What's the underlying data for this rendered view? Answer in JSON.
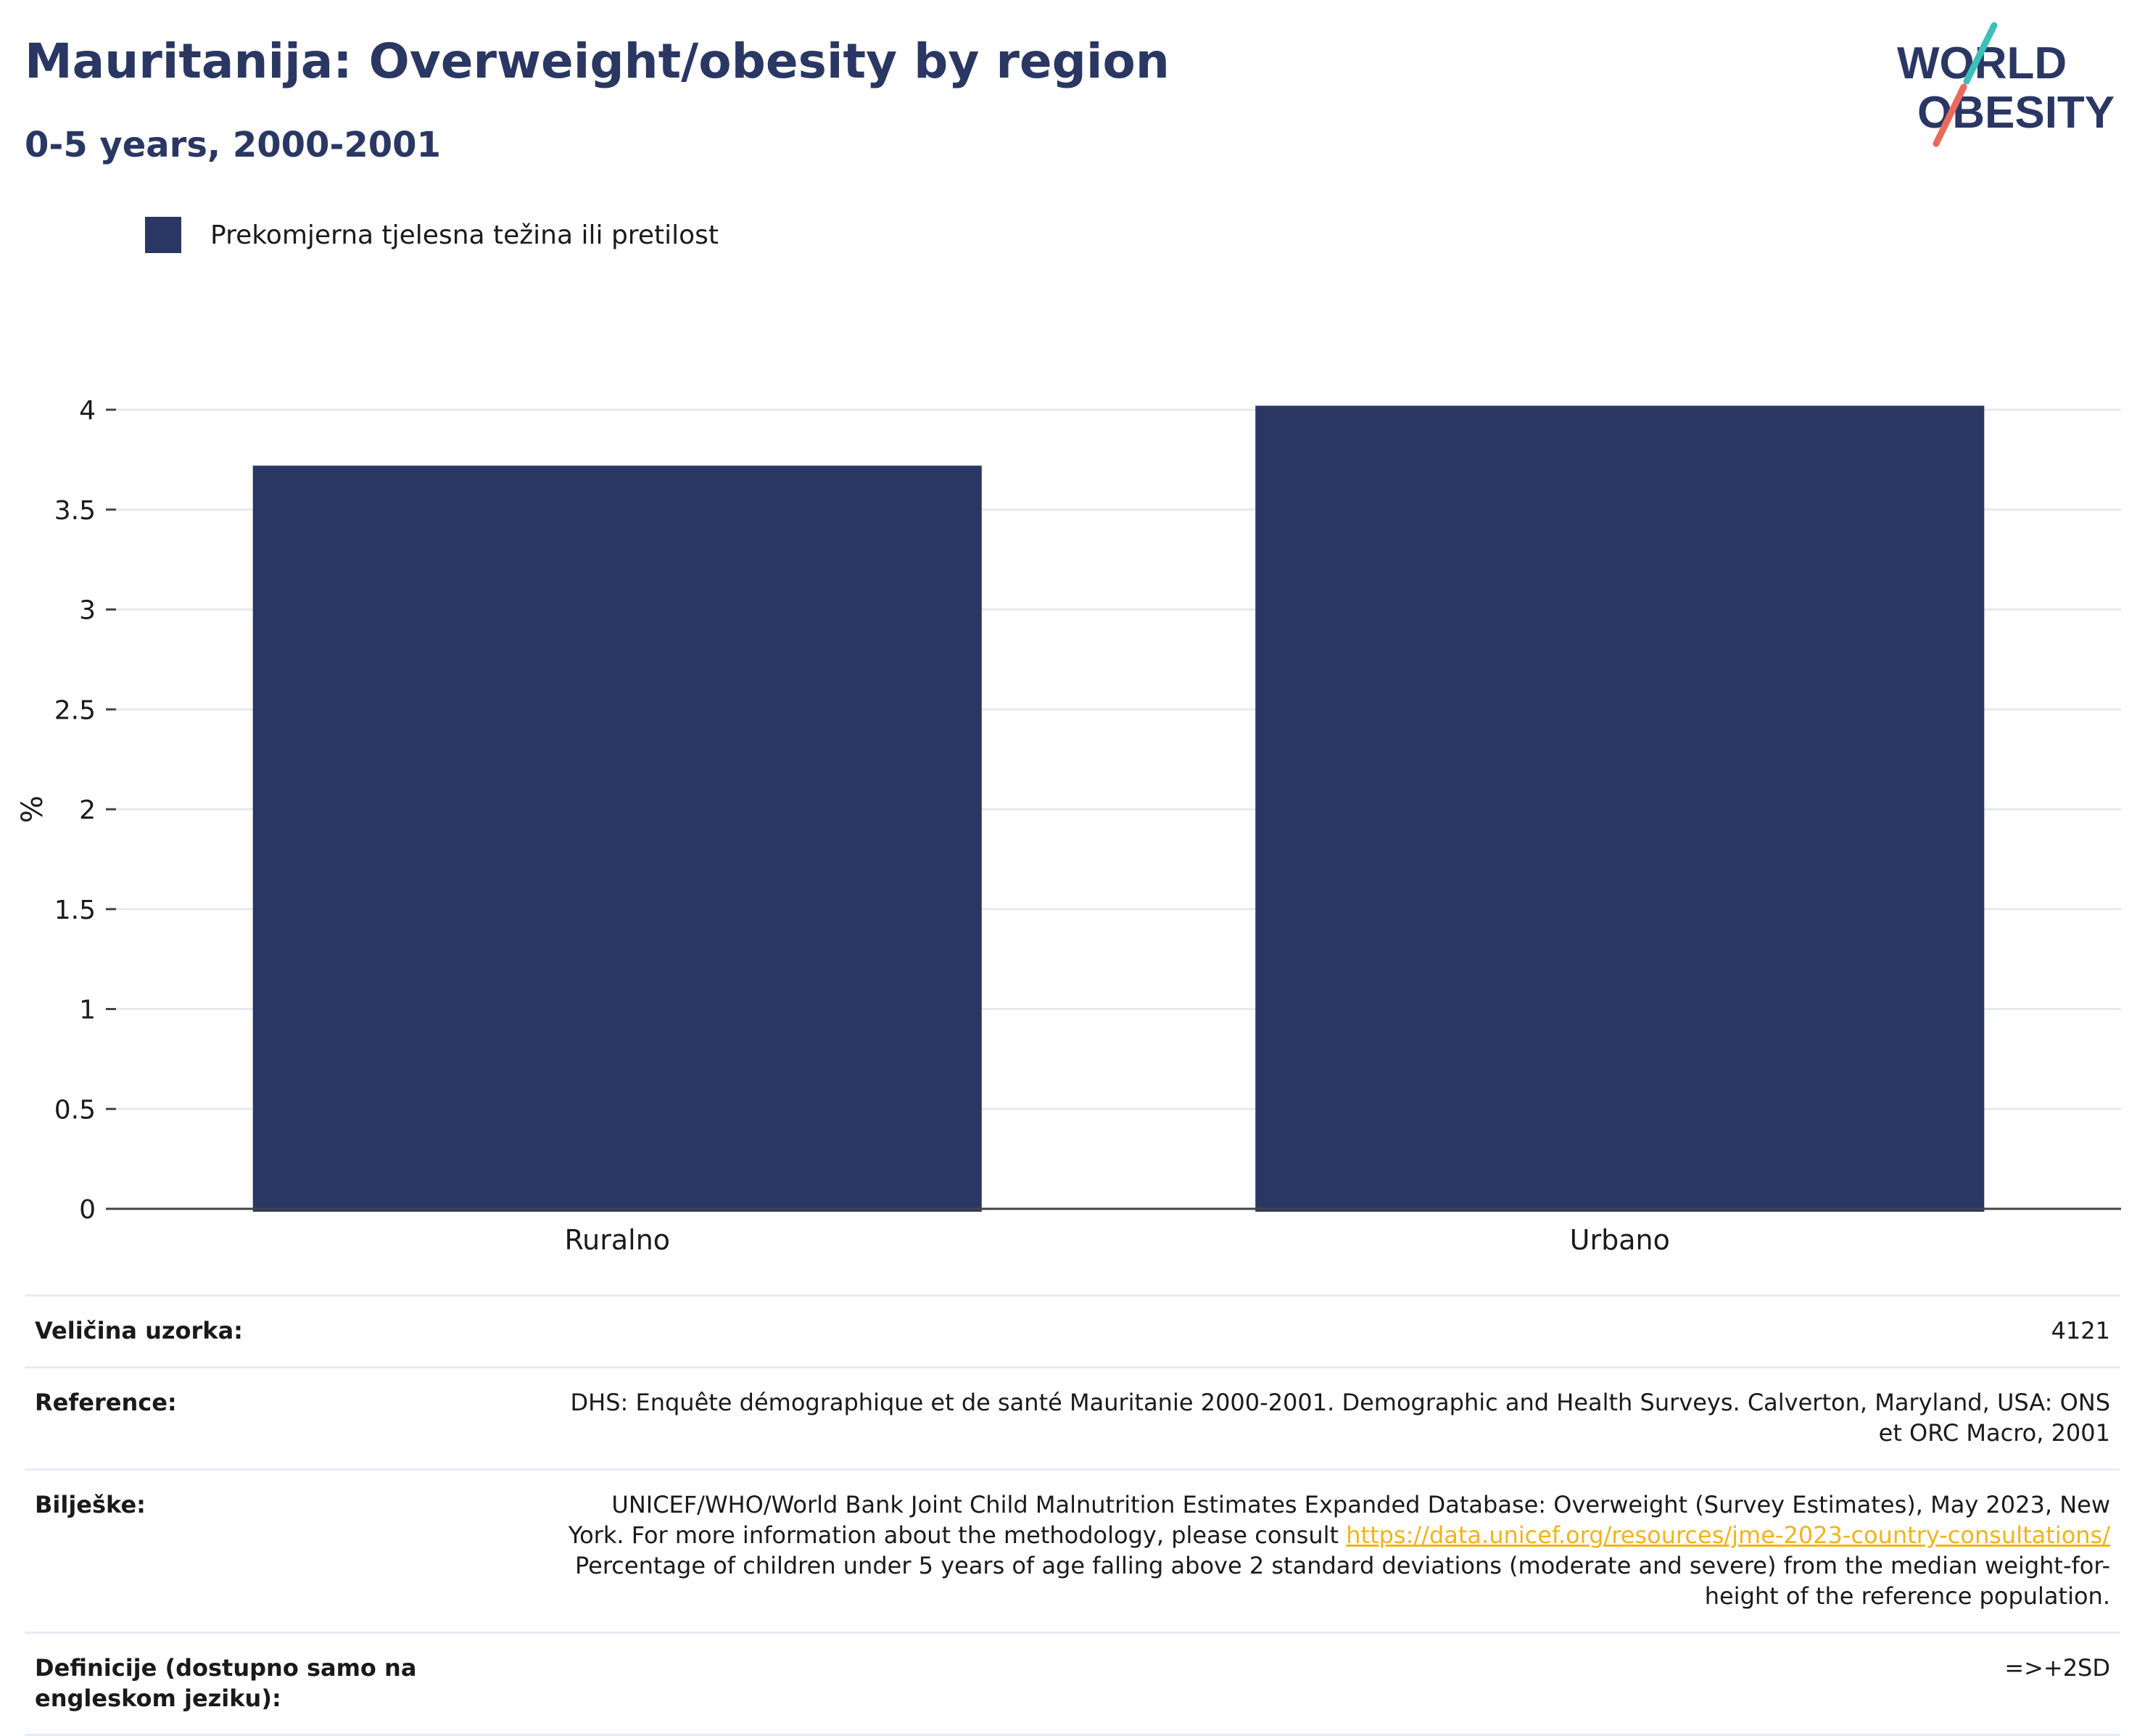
{
  "header": {
    "title": "Mauritanija: Overweight/obesity by region",
    "subtitle": "0-5 years, 2000-2001"
  },
  "logo": {
    "line1": "WORLD",
    "line2": "OBESITY"
  },
  "chart_data": {
    "type": "bar",
    "categories": [
      "Ruralno",
      "Urbano"
    ],
    "series": [
      {
        "name": "Prekomjerna tjelesna težina ili pretilost",
        "values": [
          3.72,
          4.02
        ],
        "color": "#2a3763"
      }
    ],
    "ylabel": "%",
    "xlabel": "",
    "ylim": [
      0,
      4
    ],
    "yticks": [
      0,
      0.5,
      1,
      1.5,
      2,
      2.5,
      3,
      3.5,
      4
    ],
    "ytick_labels": [
      "0",
      "0.5",
      "1",
      "1.5",
      "2",
      "2.5",
      "3",
      "3.5",
      "4"
    ],
    "grid": true,
    "legend_position": "top-left"
  },
  "info": {
    "sample_label": "Veličina uzorka:",
    "sample_value": "4121",
    "reference_label": "Reference:",
    "reference_value": "DHS: Enquête démographique et de santé Mauritanie 2000-2001. Demographic and Health Surveys. Calverton, Maryland, USA: ONS et ORC Macro, 2001",
    "notes_label": "Bilješke:",
    "notes_text_1": "UNICEF/WHO/World Bank Joint Child Malnutrition Estimates Expanded Database: Overweight (Survey Estimates), May 2023, New York. For more information about the methodology, please consult ",
    "notes_link": "https://data.unicef.org/resources/jme-2023-country-consultations/",
    "notes_text_2": " Percentage of children under 5 years of age falling above 2 standard deviations (moderate and severe) from the median weight-for-height of the reference population.",
    "definitions_label": "Definicije (dostupno samo na engleskom jeziku):",
    "definitions_value": "=>+2SD"
  }
}
